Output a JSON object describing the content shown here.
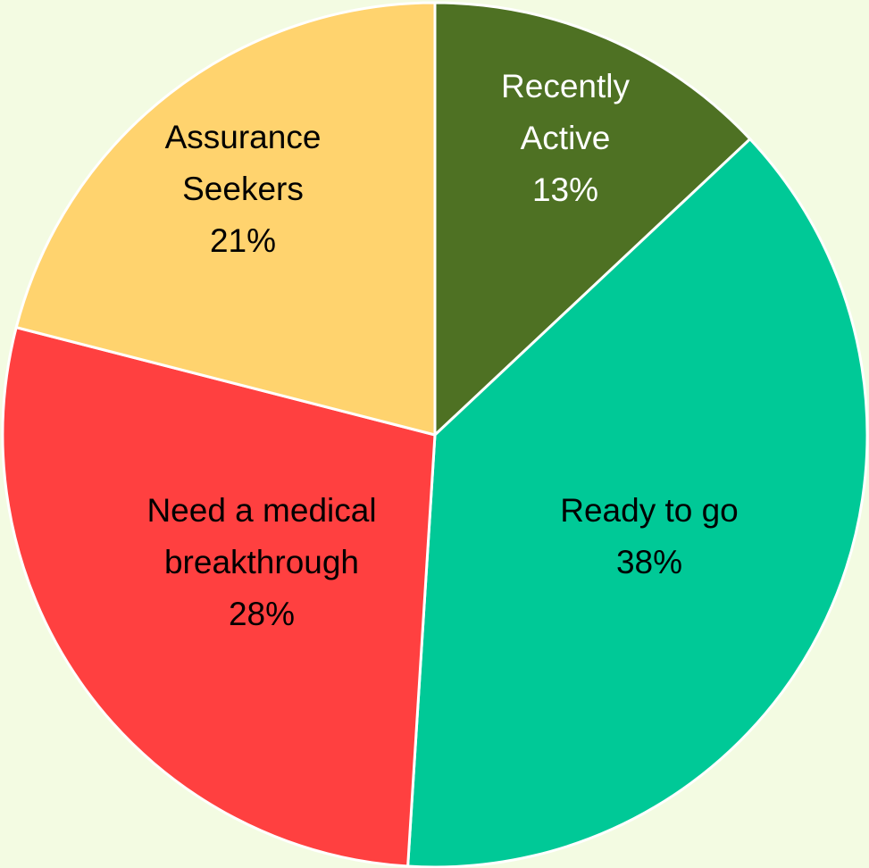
{
  "chart_data": {
    "type": "pie",
    "categories": [
      "Recently Active",
      "Ready to go",
      "Need a medical breakthrough",
      "Assurance Seekers"
    ],
    "values": [
      13,
      38,
      28,
      21
    ],
    "value_labels": [
      "13%",
      "38%",
      "28%",
      "21%"
    ],
    "colors": [
      "#4e7123",
      "#00c997",
      "#ff4040",
      "#ffd36e"
    ]
  }
}
